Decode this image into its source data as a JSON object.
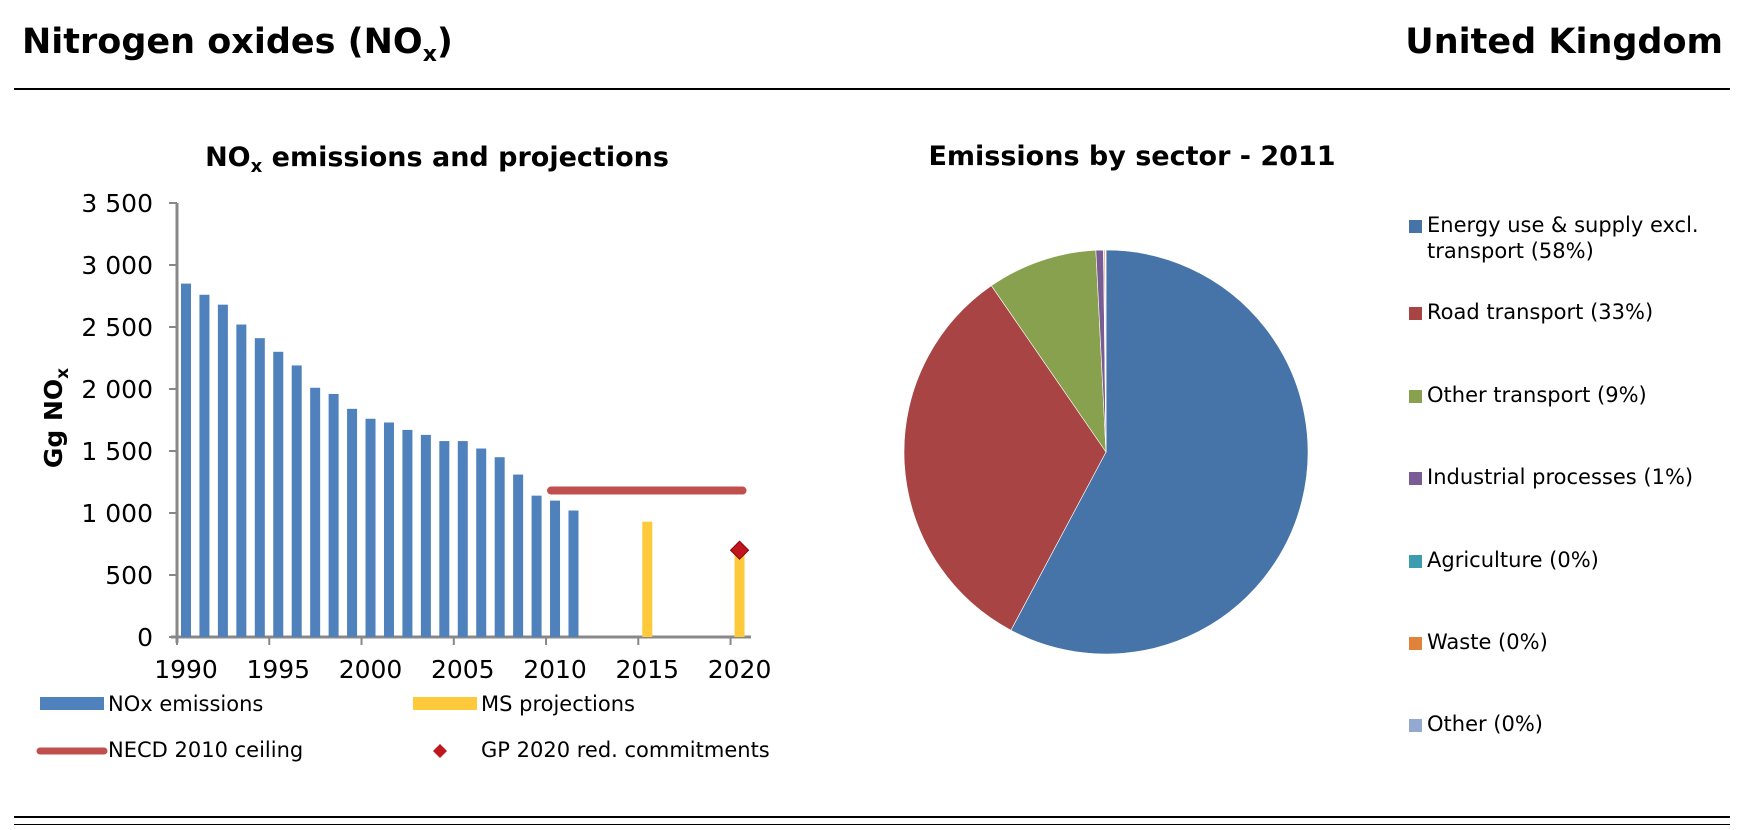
{
  "header": {
    "title_main": "Nitrogen oxides (NO",
    "title_sub": "x",
    "title_end": ")",
    "country": "United Kingdom"
  },
  "chart_data": [
    {
      "type": "bar",
      "title": "NOx emissions and projections",
      "title_main": "NO",
      "title_sub": "x",
      "title_rest": " emissions and projections",
      "ylabel": "Gg NOx",
      "ylabel_main": "Gg NO",
      "ylabel_sub": "x",
      "ylim": [
        0,
        3500
      ],
      "yticks": [
        0,
        500,
        1000,
        1500,
        2000,
        2500,
        3000,
        3500
      ],
      "ytick_labels": [
        "0",
        "500",
        "1 000",
        "1 500",
        "2 000",
        "2 500",
        "3 000",
        "3 500"
      ],
      "xlim": [
        1990,
        2021
      ],
      "xticks": [
        1990,
        1995,
        2000,
        2005,
        2010,
        2015,
        2020
      ],
      "xtick_labels": [
        "1990",
        "1995",
        "2000",
        "2005",
        "2010",
        "2015",
        "2020"
      ],
      "series": [
        {
          "name": "NOx emissions",
          "type": "bar",
          "color": "#4F81BD",
          "x": [
            1990,
            1991,
            1992,
            1993,
            1994,
            1995,
            1996,
            1997,
            1998,
            1999,
            2000,
            2001,
            2002,
            2003,
            2004,
            2005,
            2006,
            2007,
            2008,
            2009,
            2010,
            2011
          ],
          "values": [
            2850,
            2760,
            2680,
            2520,
            2410,
            2300,
            2190,
            2010,
            1960,
            1840,
            1760,
            1730,
            1670,
            1630,
            1580,
            1580,
            1520,
            1450,
            1310,
            1140,
            1100,
            1020
          ]
        },
        {
          "name": "MS projections",
          "type": "bar",
          "color": "#FFC93C",
          "x": [
            2015,
            2020
          ],
          "values": [
            930,
            700
          ]
        },
        {
          "name": "NECD 2010 ceiling",
          "type": "line",
          "color": "#C0504D",
          "x": [
            2010,
            2020
          ],
          "values": [
            1181,
            1181
          ]
        },
        {
          "name": "GP 2020 red. commitments",
          "type": "marker",
          "color": "#C0161E",
          "x": [
            2020
          ],
          "values": [
            700
          ]
        }
      ],
      "legend": [
        {
          "label": "NOx emissions",
          "color": "#4F81BD",
          "kind": "bar"
        },
        {
          "label": "MS projections",
          "color": "#FFC93C",
          "kind": "bar"
        },
        {
          "label": "NECD 2010 ceiling",
          "color": "#C0504D",
          "kind": "line"
        },
        {
          "label": "GP 2020 red. commitments",
          "color": "#C0161E",
          "kind": "diamond"
        }
      ],
      "legend_position": "bottom",
      "grid": false
    },
    {
      "type": "pie",
      "title": "Emissions by sector - 2011",
      "categories": [
        "Energy use & supply excl. transport",
        "Road transport",
        "Other transport",
        "Industrial processes",
        "Agriculture",
        "Waste",
        "Other"
      ],
      "labels": [
        "Energy use & supply excl. transport (58%)",
        "Road transport (33%)",
        "Other transport (9%)",
        "Industrial processes (1%)",
        "Agriculture  (0%)",
        "Waste (0%)",
        "Other (0%)"
      ],
      "values": [
        57.8,
        32.6,
        8.8,
        0.6,
        0.05,
        0.1,
        0.05
      ],
      "colors": [
        "#4674A8",
        "#A84444",
        "#88A14F",
        "#7A5C94",
        "#3D9CAE",
        "#E0823A",
        "#93A9CF"
      ],
      "legend_position": "right"
    }
  ]
}
